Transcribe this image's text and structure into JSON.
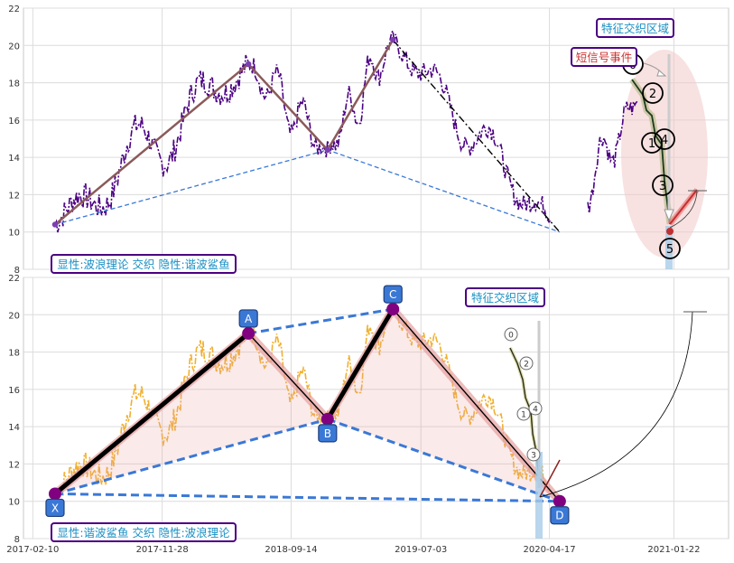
{
  "chart_data": [
    {
      "type": "line",
      "panel": "top",
      "ylim": [
        8,
        22
      ],
      "yticks": [
        8,
        10,
        12,
        14,
        16,
        18,
        20,
        22
      ],
      "grid": true,
      "price_color": "#4b0082",
      "wave_pivots": [
        {
          "date": "2017-04-01",
          "value": 10.4
        },
        {
          "date": "2018-06-10",
          "value": 19.0
        },
        {
          "date": "2018-12-05",
          "value": 14.4
        },
        {
          "date": "2019-05-01",
          "value": 20.3
        },
        {
          "date": "2020-05-10",
          "value": 10.0
        }
      ],
      "wave_color": "#8b5a5a",
      "trend_dash_color": "#000000",
      "harmonic_dash_color": "#3a78d6",
      "highlight_region": {
        "label": "特征交织区域",
        "color": "#f2c9c9"
      },
      "signal_label": "短信号事件",
      "wave_circle_labels": [
        "0",
        "2",
        "1",
        "4",
        "3",
        "5"
      ],
      "info_box": "显性:波浪理论 交织 隐性:谐波鲨鱼"
    },
    {
      "type": "line",
      "panel": "bottom",
      "ylim": [
        8,
        22
      ],
      "yticks": [
        8,
        10,
        12,
        14,
        16,
        18,
        20,
        22
      ],
      "grid": true,
      "price_color": "#f0b030",
      "harmonic_points": [
        {
          "label": "X",
          "date": "2017-04-01",
          "value": 10.4
        },
        {
          "label": "A",
          "date": "2018-06-10",
          "value": 19.0
        },
        {
          "label": "B",
          "date": "2018-12-05",
          "value": 14.4
        },
        {
          "label": "C",
          "date": "2019-05-01",
          "value": 20.3
        },
        {
          "label": "D",
          "date": "2020-05-10",
          "value": 10.0
        }
      ],
      "harmonic_color": "#3a78d6",
      "pattern_fill": "#e8a0a0",
      "highlight_region": {
        "label": "特征交织区域"
      },
      "wave_circle_labels": [
        "0",
        "2",
        "1",
        "4",
        "3"
      ],
      "info_box": "显性:谐波鲨鱼 交织 隐性:波浪理论"
    }
  ],
  "x_axis": {
    "tick_labels": [
      "2017-02-10",
      "2017-11-28",
      "2018-09-14",
      "2019-07-03",
      "2020-04-17",
      "2021-01-22"
    ],
    "tick_dates": [
      "2017-02-10",
      "2017-11-28",
      "2018-09-14",
      "2019-07-03",
      "2020-04-17",
      "2021-01-22"
    ],
    "domain": [
      "2017-01-20",
      "2021-05-25"
    ]
  }
}
